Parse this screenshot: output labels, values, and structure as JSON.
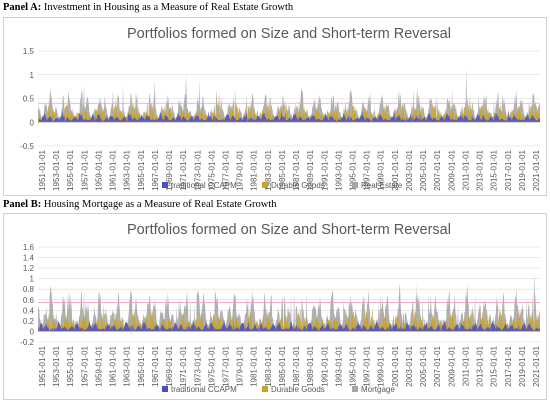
{
  "panels": [
    {
      "label_bold": "Panel A:",
      "label_text": " Investment in Housing as a Measure of Real Estate Growth"
    },
    {
      "label_bold": "Panel B:",
      "label_text": " Housing Mortgage as a Measure of Real Estate Growth"
    }
  ],
  "chart_data": [
    {
      "type": "area",
      "title": "Portfolios formed on Size and Short-term Reversal",
      "xlabel": "",
      "ylabel": "",
      "ylim": [
        -0.5,
        1.5
      ],
      "yticks": [
        "1.5",
        "1",
        "0.5",
        "0",
        "-0.5"
      ],
      "ytick_values": [
        1.5,
        1,
        0.5,
        0,
        -0.5
      ],
      "x_range": [
        "1951-01-01",
        "2021-12-01"
      ],
      "xticks": [
        "1951-01-01",
        "1953-01-01",
        "1955-01-01",
        "1957-01-01",
        "1959-01-01",
        "1961-01-01",
        "1963-01-01",
        "1965-01-01",
        "1967-01-01",
        "1969-01-01",
        "1971-01-01",
        "1973-01-01",
        "1975-01-01",
        "1977-01-01",
        "1979-01-01",
        "1981-01-01",
        "1983-01-01",
        "1985-01-01",
        "1987-01-01",
        "1989-01-01",
        "1991-01-01",
        "1993-01-01",
        "1995-01-01",
        "1997-01-01",
        "1999-01-01",
        "2001-01-01",
        "2003-01-01",
        "2005-01-01",
        "2007-01-01",
        "2009-01-01",
        "2011-01-01",
        "2013-01-01",
        "2015-01-01",
        "2017-01-01",
        "2019-01-01",
        "2021-01-01"
      ],
      "grid": true,
      "legend_position": "bottom",
      "series": [
        {
          "name": "traditional CCAPM",
          "color": "#4a4fc4",
          "level": 0.12,
          "amplitude": 0.12
        },
        {
          "name": "Durable Goods",
          "color": "#c9a227",
          "level": 0.2,
          "amplitude": 0.25
        },
        {
          "name": "Real Estate",
          "color": "#a6a6a6",
          "level": 0.3,
          "amplitude": 0.45
        }
      ]
    },
    {
      "type": "area",
      "title": "Portfolios formed on Size and Short-term Reversal",
      "xlabel": "",
      "ylabel": "",
      "ylim": [
        -0.2,
        1.6
      ],
      "yticks": [
        "1.6",
        "1.4",
        "1.2",
        "1",
        "0.8",
        "0.6",
        "0.4",
        "0.2",
        "0",
        "-0.2"
      ],
      "ytick_values": [
        1.6,
        1.4,
        1.2,
        1,
        0.8,
        0.6,
        0.4,
        0.2,
        0,
        -0.2
      ],
      "x_range": [
        "1951-01-01",
        "2021-12-01"
      ],
      "xticks": [
        "1951-01-01",
        "1953-01-01",
        "1955-01-01",
        "1957-01-01",
        "1959-01-01",
        "1961-01-01",
        "1963-01-01",
        "1965-01-01",
        "1967-01-01",
        "1969-01-01",
        "1971-01-01",
        "1973-01-01",
        "1975-01-01",
        "1977-01-01",
        "1979-01-01",
        "1981-01-01",
        "1983-01-01",
        "1985-01-01",
        "1987-01-01",
        "1989-01-01",
        "1991-01-01",
        "1993-01-01",
        "1995-01-01",
        "1997-01-01",
        "1999-01-01",
        "2001-01-01",
        "2003-01-01",
        "2005-01-01",
        "2007-01-01",
        "2009-01-01",
        "2011-01-01",
        "2013-01-01",
        "2015-01-01",
        "2017-01-01",
        "2019-01-01",
        "2021-01-01"
      ],
      "grid": true,
      "legend_position": "bottom",
      "series": [
        {
          "name": "traditional CCAPM",
          "color": "#4a4fc4",
          "level": 0.1,
          "amplitude": 0.12
        },
        {
          "name": "Durable Goods",
          "color": "#c9a227",
          "level": 0.2,
          "amplitude": 0.25
        },
        {
          "name": "Mortgage",
          "color": "#a6a6a6",
          "level": 0.35,
          "amplitude": 0.55
        }
      ]
    }
  ]
}
